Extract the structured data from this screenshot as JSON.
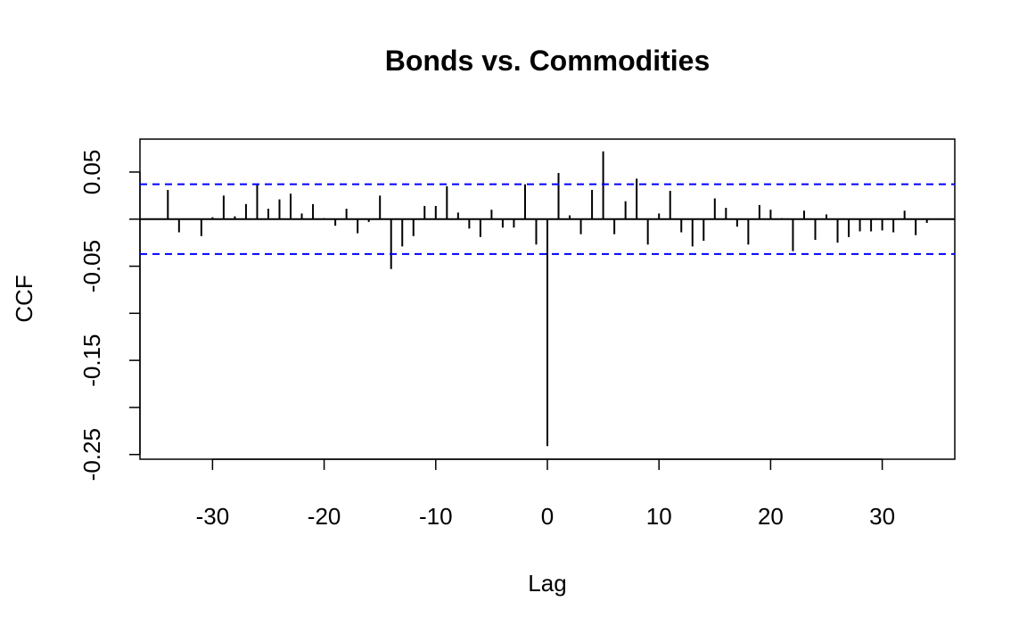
{
  "chart_data": {
    "type": "bar",
    "title": "Bonds vs. Commodities",
    "xlabel": "Lag",
    "ylabel": "CCF",
    "xlim": [
      -36.5,
      36.5
    ],
    "ylim": [
      -0.255,
      0.085
    ],
    "xticks": [
      -30,
      -20,
      -10,
      0,
      10,
      20,
      30
    ],
    "xtick_labels": [
      "-30",
      "-20",
      "-10",
      "0",
      "10",
      "20",
      "30"
    ],
    "yticks": [
      0.05,
      0,
      -0.05,
      -0.1,
      -0.15,
      -0.2,
      -0.25
    ],
    "ytick_labels": [
      "0.05",
      "",
      "-0.05",
      "",
      "-0.15",
      "",
      "-0.25"
    ],
    "confidence_band": 0.037,
    "confidence_color": "#0000ff",
    "grid": false,
    "series": [
      {
        "lags": [
          -34,
          -33,
          -32,
          -31,
          -30,
          -29,
          -28,
          -27,
          -26,
          -25,
          -24,
          -23,
          -22,
          -21,
          -20,
          -19,
          -18,
          -17,
          -16,
          -15,
          -14,
          -13,
          -12,
          -11,
          -10,
          -9,
          -8,
          -7,
          -6,
          -5,
          -4,
          -3,
          -2,
          -1,
          0,
          1,
          2,
          3,
          4,
          5,
          6,
          7,
          8,
          9,
          10,
          11,
          12,
          13,
          14,
          15,
          16,
          17,
          18,
          19,
          20,
          21,
          22,
          23,
          24,
          25,
          26,
          27,
          28,
          29,
          30,
          31,
          32,
          33,
          34
        ],
        "values": [
          0.031,
          -0.014,
          0.0,
          -0.018,
          0.002,
          0.025,
          0.003,
          0.016,
          0.037,
          0.011,
          0.021,
          0.027,
          0.006,
          0.016,
          0.001,
          -0.007,
          0.011,
          -0.015,
          -0.003,
          0.025,
          -0.053,
          -0.029,
          -0.018,
          0.014,
          0.014,
          0.035,
          0.007,
          -0.01,
          -0.019,
          0.01,
          -0.009,
          -0.009,
          0.037,
          -0.027,
          -0.241,
          0.049,
          0.004,
          -0.016,
          0.031,
          0.072,
          -0.016,
          0.019,
          0.043,
          -0.027,
          0.006,
          0.03,
          -0.014,
          -0.029,
          -0.023,
          0.022,
          0.012,
          -0.008,
          -0.027,
          0.015,
          0.01,
          0.001,
          -0.034,
          0.009,
          -0.022,
          0.005,
          -0.025,
          -0.019,
          -0.013,
          -0.013,
          -0.012,
          -0.014,
          0.009,
          -0.017,
          -0.004
        ]
      }
    ]
  }
}
